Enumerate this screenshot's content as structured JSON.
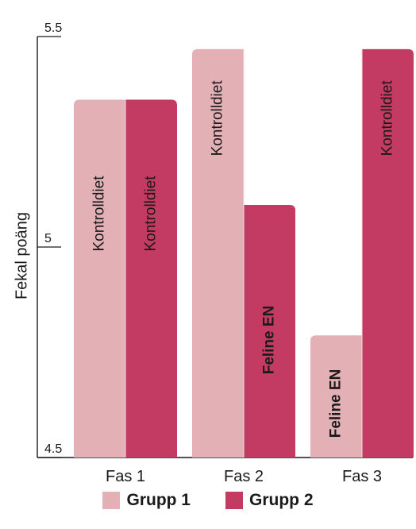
{
  "chart_data": {
    "type": "bar",
    "title": "",
    "xlabel": "",
    "ylabel": "Fekal poäng",
    "ylim": [
      4.5,
      5.5
    ],
    "yticks": [
      {
        "value": 4.5,
        "label": "4.5"
      },
      {
        "value": 5.0,
        "label": "5"
      },
      {
        "value": 5.5,
        "label": "5.5"
      }
    ],
    "categories": [
      "Fas 1",
      "Fas 2",
      "Fas 3"
    ],
    "series": [
      {
        "name": "Grupp 1",
        "color": "#e3b0b6",
        "values": [
          5.35,
          5.47,
          4.79
        ],
        "bar_labels": [
          "Kontrolldiet",
          "Kontrolldiet",
          "Feline EN"
        ]
      },
      {
        "name": "Grupp 2",
        "color": "#c33a62",
        "values": [
          5.35,
          5.1,
          5.47
        ],
        "bar_labels": [
          "Kontrolldiet",
          "Feline EN",
          "Kontrolldiet"
        ]
      }
    ],
    "bold_labels": [
      "Feline EN"
    ],
    "legend_position": "bottom",
    "grid": false
  }
}
